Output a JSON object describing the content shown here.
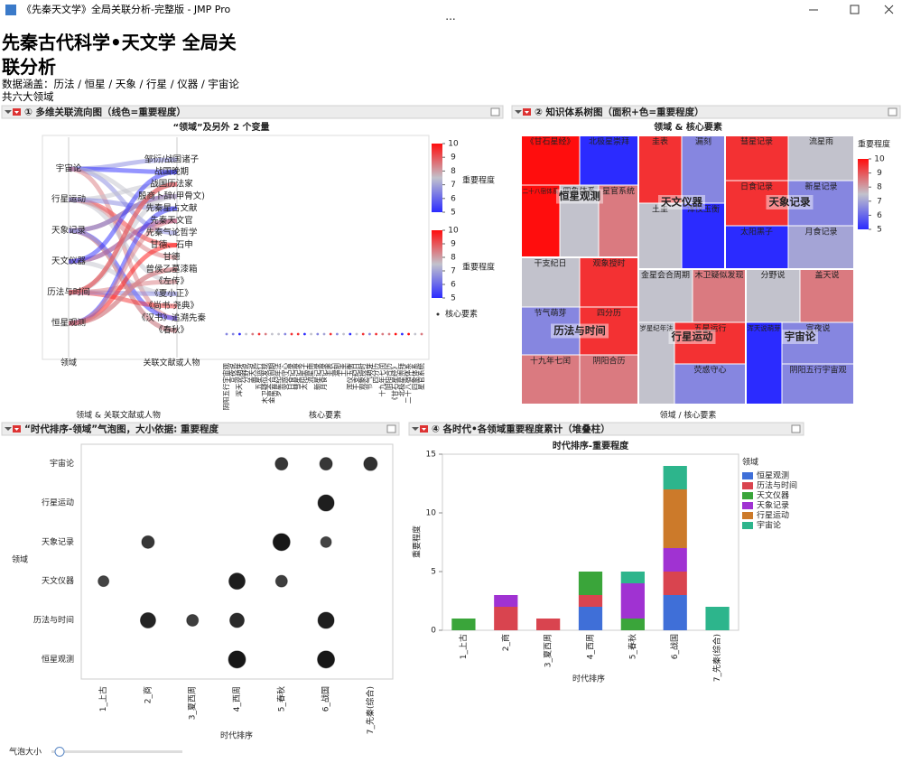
{
  "window": {
    "title": "《先秦天文学》全局关联分析-完整版 - JMP Pro"
  },
  "header": {
    "title": "先秦古代科学•天文学 全局关联分析",
    "subtitle": "数据涵盖：历法 / 恒星 / 天象 / 行星 / 仪器 / 宇宙论",
    "note": "共六大领域"
  },
  "controls": {
    "slider_label": "气泡大小"
  },
  "chart_data": [
    {
      "type": "parallel",
      "panel_title": "① 多维关联流向图（线色=重要程度）",
      "title": "“领域”及另外 2 个变量",
      "axes": [
        "领域",
        "关联文献或人物",
        "核心要素"
      ],
      "footer": "领域 & 关联文献或人物",
      "domains": [
        "宇宙论",
        "行星运动",
        "天象记录",
        "天文仪器",
        "历法与时间",
        "恒星观测"
      ],
      "sources": [
        "邹衍/战国诸子",
        "战国晚期",
        "战国历法家",
        "殷商卜辞(甲骨文)",
        "先秦星占文献",
        "先秦天文官",
        "先秦气论哲学",
        "甘德、石申",
        "甘德",
        "曾侯乙墓漆箱",
        "《左传》",
        "《夏小正》",
        "《尚书·尧典》",
        "《汉书》追溯先秦",
        "《春秋》"
      ],
      "records": [
        {
          "domain": "宇宙论",
          "source": "邹衍/战国诸子",
          "element": "阴阳五行宇宙观",
          "value": 6.5
        },
        {
          "domain": "宇宙论",
          "source": "先秦气论哲学",
          "element": "宣夜说",
          "value": 6.5
        },
        {
          "domain": "宇宙论",
          "source": "战国晚期",
          "element": "浑天说萌芽",
          "value": 5
        },
        {
          "domain": "宇宙论",
          "source": "先秦星占文献",
          "element": "分野说",
          "value": 7.5
        },
        {
          "domain": "宇宙论",
          "source": "《汉书》追溯先秦",
          "element": "盖天说",
          "value": 8.5
        },
        {
          "domain": "行星运动",
          "source": "甘德、石申",
          "element": "五星运行",
          "value": 9.5
        },
        {
          "domain": "行星运动",
          "source": "甘德",
          "element": "木卫疑似发现",
          "value": 8.5
        },
        {
          "domain": "行星运动",
          "source": "战国历法家",
          "element": "金星会合周期",
          "value": 7.5
        },
        {
          "domain": "行星运动",
          "source": "《左传》",
          "element": "岁星纪年法",
          "value": 7.5
        },
        {
          "domain": "行星运动",
          "source": "先秦星占文献",
          "element": "荧惑守心",
          "value": 6.5
        },
        {
          "domain": "天象记录",
          "source": "殷商卜辞(甲骨文)",
          "element": "日食记录",
          "value": 9.5
        },
        {
          "domain": "天象记录",
          "source": "《春秋》",
          "element": "彗星记录",
          "value": 9.5
        },
        {
          "domain": "天象记录",
          "source": "《汉书》追溯先秦",
          "element": "太阳黑子",
          "value": 5
        },
        {
          "domain": "天象记录",
          "source": "《春秋》",
          "element": "流星雨",
          "value": 7.5
        },
        {
          "domain": "天象记录",
          "source": "殷商卜辞(甲骨文)",
          "element": "新星记录",
          "value": 6.5
        },
        {
          "domain": "天象记录",
          "source": "殷商卜辞(甲骨文)",
          "element": "月食记录",
          "value": 7
        },
        {
          "domain": "天文仪器",
          "source": "先秦天文官",
          "element": "圭表",
          "value": 9.5
        },
        {
          "domain": "天文仪器",
          "source": "先秦天文官",
          "element": "漏刻",
          "value": 6.5
        },
        {
          "domain": "天文仪器",
          "source": "《夏小正》",
          "element": "土圭",
          "value": 7.5
        },
        {
          "domain": "天文仪器",
          "source": "战国晚期",
          "element": "浑仪玉衡",
          "value": 5
        },
        {
          "domain": "历法与时间",
          "source": "殷商卜辞(甲骨文)",
          "element": "干支纪日",
          "value": 7.5
        },
        {
          "domain": "历法与时间",
          "source": "《尚书·尧典》",
          "element": "观象授时",
          "value": 9.5
        },
        {
          "domain": "历法与时间",
          "source": "《夏小正》",
          "element": "节气萌芽",
          "value": 6.5
        },
        {
          "domain": "历法与时间",
          "source": "战国历法家",
          "element": "四分历",
          "value": 9.5
        },
        {
          "domain": "历法与时间",
          "source": "战国历法家",
          "element": "十九年七闰",
          "value": 8.5
        },
        {
          "domain": "历法与时间",
          "source": "《左传》",
          "element": "阴阳合历",
          "value": 8.5
        },
        {
          "domain": "恒星观测",
          "source": "甘德、石申",
          "element": "《甘石星经》",
          "value": 10
        },
        {
          "domain": "恒星观测",
          "source": "先秦星占文献",
          "element": "北极星崇拜",
          "value": 5
        },
        {
          "domain": "恒星观测",
          "source": "曾侯乙墓漆箱",
          "element": "二十八宿体系",
          "value": 10
        },
        {
          "domain": "恒星观测",
          "source": "曾侯乙墓漆箱",
          "element": "四象体系",
          "value": 7.5
        },
        {
          "domain": "恒星观测",
          "source": "先秦天文官",
          "element": "星官系统",
          "value": 8.5
        }
      ],
      "colorlim": [
        5,
        10
      ],
      "colorticks": [
        5,
        6,
        7,
        8,
        9,
        10
      ],
      "colors": [
        "#2b2bff",
        "#c2c2cc",
        "#ff0d0d"
      ],
      "legend_title": "重要程度",
      "legend_marker": "核心要素"
    },
    {
      "type": "treemap",
      "panel_title": "② 知识体系树图（面积+色=重要程度）",
      "title": "领域 & 核心要素",
      "footer": "领域 / 核心要素",
      "groups": [
        {
          "name": "恒星观测",
          "children": [
            {
              "name": "《甘石星经》",
              "value": 10
            },
            {
              "name": "北极星崇拜",
              "value": 5
            },
            {
              "name": "二十八宿体系",
              "value": 10
            },
            {
              "name": "四象体系",
              "value": 7.5
            },
            {
              "name": "星官系统",
              "value": 8.5
            }
          ]
        },
        {
          "name": "天文仪器",
          "children": [
            {
              "name": "圭表",
              "value": 9.5
            },
            {
              "name": "漏刻",
              "value": 6.5
            },
            {
              "name": "土圭",
              "value": 7.5
            },
            {
              "name": "浑仪玉衡",
              "value": 5
            }
          ]
        },
        {
          "name": "天象记录",
          "children": [
            {
              "name": "彗星记录",
              "value": 9.5
            },
            {
              "name": "流星雨",
              "value": 7.5
            },
            {
              "name": "日食记录",
              "value": 9.5
            },
            {
              "name": "新星记录",
              "value": 6.5
            },
            {
              "name": "太阳黑子",
              "value": 5
            },
            {
              "name": "月食记录",
              "value": 7
            }
          ]
        },
        {
          "name": "历法与时间",
          "children": [
            {
              "name": "干支纪日",
              "value": 7.5
            },
            {
              "name": "观象授时",
              "value": 9.5
            },
            {
              "name": "节气萌芽",
              "value": 6.5
            },
            {
              "name": "四分历",
              "value": 9.5
            },
            {
              "name": "十九年七闰",
              "value": 8.5
            },
            {
              "name": "阴阳合历",
              "value": 8.5
            }
          ]
        },
        {
          "name": "行星运动",
          "children": [
            {
              "name": "金星会合周期",
              "value": 7.5
            },
            {
              "name": "木卫疑似发现",
              "value": 8.5
            },
            {
              "name": "岁星纪年法",
              "value": 7.5
            },
            {
              "name": "五星运行",
              "value": 9.5
            },
            {
              "name": "荧惑守心",
              "value": 6.5
            }
          ]
        },
        {
          "name": "宇宙论",
          "children": [
            {
              "name": "分野说",
              "value": 7.5
            },
            {
              "name": "盖天说",
              "value": 8.5
            },
            {
              "name": "浑天说萌芽",
              "value": 5
            },
            {
              "name": "宣夜说",
              "value": 6.5
            },
            {
              "name": "阴阳五行宇宙观",
              "value": 6.5
            }
          ]
        }
      ],
      "colorlim": [
        5,
        10
      ],
      "colorticks": [
        5,
        6,
        7,
        8,
        9,
        10
      ],
      "colors": [
        "#2b2bff",
        "#c2c2cc",
        "#ff0d0d"
      ],
      "legend_title": "重要程度"
    },
    {
      "type": "bubble",
      "panel_title": "“时代排序-领域”气泡图，大小依据: 重要程度",
      "x_label": "时代排序",
      "y_label": "领域",
      "color": "#111111",
      "categories": [
        "1_上古",
        "2_商",
        "3_夏西周",
        "4_西周",
        "5_春秋",
        "6_战国",
        "7_先秦(综合)"
      ],
      "series": [
        {
          "name": "宇宙论",
          "values": [
            null,
            null,
            null,
            null,
            7,
            7,
            7.5
          ]
        },
        {
          "name": "行星运动",
          "values": [
            null,
            null,
            null,
            null,
            null,
            9,
            null
          ]
        },
        {
          "name": "天象记录",
          "values": [
            null,
            7,
            null,
            null,
            9.5,
            6,
            null
          ]
        },
        {
          "name": "天文仪器",
          "values": [
            6,
            null,
            null,
            9,
            6.5,
            null,
            null
          ]
        },
        {
          "name": "历法与时间",
          "values": [
            null,
            8.5,
            6.5,
            8,
            null,
            9,
            null
          ]
        },
        {
          "name": "恒星观测",
          "values": [
            null,
            null,
            null,
            9.5,
            null,
            9.5,
            null
          ]
        }
      ]
    },
    {
      "type": "stacked_bar",
      "panel_title": "④ 各时代•各领域重要程度累计（堆叠柱）",
      "title": "时代排序-重要程度",
      "x_label": "时代排序",
      "y_label": "重要程度",
      "legend_title": "领域",
      "categories": [
        "1_上古",
        "2_商",
        "3_夏西周",
        "4_西周",
        "5_春秋",
        "6_战国",
        "7_先秦(综合)"
      ],
      "series": [
        {
          "name": "恒星观测",
          "color": "#3f6fd8",
          "values": [
            null,
            null,
            null,
            2,
            null,
            3,
            null
          ]
        },
        {
          "name": "历法与时间",
          "color": "#d9444f",
          "values": [
            null,
            2,
            1,
            1,
            null,
            2,
            null
          ]
        },
        {
          "name": "天文仪器",
          "color": "#3aa53a",
          "values": [
            1,
            null,
            null,
            2,
            1,
            null,
            null
          ]
        },
        {
          "name": "天象记录",
          "color": "#a032d2",
          "values": [
            null,
            1,
            null,
            null,
            3,
            2,
            null
          ]
        },
        {
          "name": "行星运动",
          "color": "#cc7a2a",
          "values": [
            null,
            null,
            null,
            null,
            null,
            5,
            null
          ]
        },
        {
          "name": "宇宙论",
          "color": "#2db58c",
          "values": [
            null,
            null,
            null,
            null,
            1,
            2,
            2
          ]
        }
      ],
      "ylim": [
        0,
        15
      ],
      "yticks": [
        0,
        5,
        10,
        15
      ]
    }
  ]
}
